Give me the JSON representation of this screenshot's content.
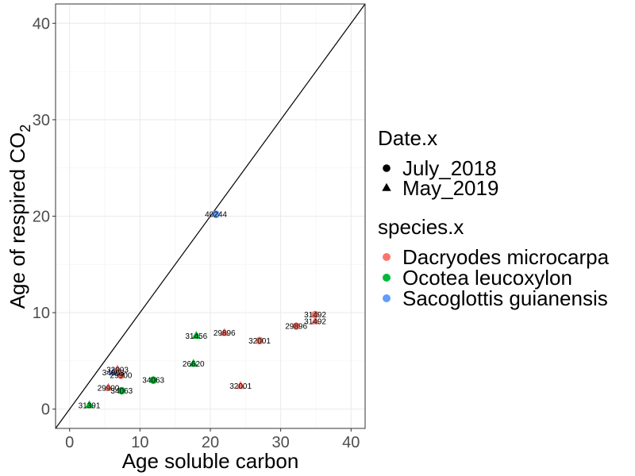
{
  "chart_data": {
    "type": "scatter",
    "xlabel": "Age soluble carbon",
    "ylabel": "Age of respired CO",
    "ylabel_subscript": "2",
    "xlim": [
      -2,
      42
    ],
    "ylim": [
      -2,
      42
    ],
    "x_ticks": [
      0,
      10,
      20,
      30,
      40
    ],
    "y_ticks": [
      0,
      10,
      20,
      30,
      40
    ],
    "grid": true,
    "reference_line": "y = x",
    "legend_placement": "right",
    "legends": [
      {
        "title": "Date.x",
        "items": [
          {
            "label": "July_2018",
            "shape": "circle"
          },
          {
            "label": "May_2019",
            "shape": "triangle"
          }
        ]
      },
      {
        "title": "species.x",
        "items": [
          {
            "label": "Dacryodes microcarpa",
            "color": "#F8766D"
          },
          {
            "label": "Ocotea leucoxylon",
            "color": "#00BA38"
          },
          {
            "label": "Sacoglottis guianensis",
            "color": "#619CFF"
          }
        ]
      }
    ],
    "points": [
      {
        "x": 2.8,
        "y": 0.4,
        "label": "31391",
        "species": "Ocotea leucoxylon",
        "date": "May_2019"
      },
      {
        "x": 5.5,
        "y": 2.2,
        "label": "29900",
        "species": "Dacryodes microcarpa",
        "date": "May_2019"
      },
      {
        "x": 7.4,
        "y": 1.9,
        "label": "34063",
        "species": "Ocotea leucoxylon",
        "date": "July_2018"
      },
      {
        "x": 6.2,
        "y": 3.8,
        "label": "34063",
        "species": "Sacoglottis guianensis",
        "date": "May_2019"
      },
      {
        "x": 6.8,
        "y": 4.1,
        "label": "32003",
        "species": "Dacryodes microcarpa",
        "date": "May_2019"
      },
      {
        "x": 7.3,
        "y": 3.5,
        "label": "29900",
        "species": "Dacryodes microcarpa",
        "date": "July_2018"
      },
      {
        "x": 11.9,
        "y": 3.0,
        "label": "34063",
        "species": "Ocotea leucoxylon",
        "date": "July_2018"
      },
      {
        "x": 17.6,
        "y": 4.7,
        "label": "26620",
        "species": "Ocotea leucoxylon",
        "date": "May_2019"
      },
      {
        "x": 18.0,
        "y": 7.6,
        "label": "31456",
        "species": "Ocotea leucoxylon",
        "date": "May_2019"
      },
      {
        "x": 22.0,
        "y": 7.9,
        "label": "29896",
        "species": "Dacryodes microcarpa",
        "date": "May_2019"
      },
      {
        "x": 20.8,
        "y": 20.2,
        "label": "40244",
        "species": "Sacoglottis guianensis",
        "date": "July_2018"
      },
      {
        "x": 24.3,
        "y": 2.4,
        "label": "32001",
        "species": "Dacryodes microcarpa",
        "date": "May_2019"
      },
      {
        "x": 27.0,
        "y": 7.1,
        "label": "32001",
        "species": "Dacryodes microcarpa",
        "date": "July_2018"
      },
      {
        "x": 32.2,
        "y": 8.6,
        "label": "29896",
        "species": "Dacryodes microcarpa",
        "date": "July_2018"
      },
      {
        "x": 34.9,
        "y": 9.8,
        "label": "31492",
        "species": "Dacryodes microcarpa",
        "date": "July_2018"
      },
      {
        "x": 34.9,
        "y": 9.1,
        "label": "31492",
        "species": "Dacryodes microcarpa",
        "date": "May_2019"
      }
    ]
  }
}
